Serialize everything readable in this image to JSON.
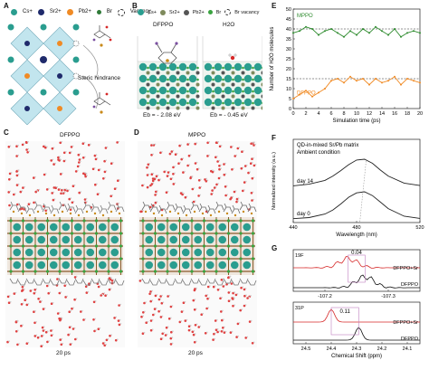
{
  "panels": {
    "A": {
      "letter": "A",
      "legend": [
        {
          "label": "Cs+",
          "color": "#2a9d8f"
        },
        {
          "label": "Sr2+",
          "color": "#1f2a6b"
        },
        {
          "label": "Pb2+",
          "color": "#f08a24"
        },
        {
          "label": "Br",
          "color": "#2f7a38"
        },
        {
          "label": "Vacancy",
          "color": "#ffffff"
        }
      ],
      "annotation": "Steric hindrance"
    },
    "B": {
      "letter": "B",
      "legend": [
        {
          "label": "Cs+",
          "color": "#2a9d8f"
        },
        {
          "label": "Sr2+",
          "color": "#7e8a5c"
        },
        {
          "label": "Pb2+",
          "color": "#555555"
        },
        {
          "label": "Br",
          "color": "#3aa340"
        },
        {
          "label": "Br vacancy",
          "color": "#ffffff"
        }
      ],
      "left_title": "DFPPO",
      "right_title": "H2O",
      "left_energy": "Eb = - 2.08 eV",
      "right_energy": "Eb = - 0.45 eV"
    },
    "C": {
      "letter": "C",
      "title": "DFPPO",
      "time": "20 ps"
    },
    "D": {
      "letter": "D",
      "title": "MPPO",
      "time": "20 ps"
    },
    "E": {
      "letter": "E"
    },
    "F": {
      "letter": "F"
    },
    "G": {
      "letter": "G"
    }
  },
  "chart_data": [
    {
      "panel": "E",
      "type": "line",
      "xlabel": "Simulation time (ps)",
      "ylabel": "Number of H2O molecules",
      "xlim": [
        0,
        20
      ],
      "ylim": [
        0,
        50
      ],
      "xticks": [
        0,
        2,
        4,
        6,
        8,
        10,
        12,
        14,
        16,
        18,
        20
      ],
      "yticks": [
        0,
        5,
        10,
        15,
        20,
        25,
        30,
        35,
        40,
        45,
        50
      ],
      "series": [
        {
          "name": "MPPO",
          "color": "#2e8b2e",
          "x": [
            0,
            1,
            2,
            3,
            4,
            5,
            6,
            7,
            8,
            9,
            10,
            11,
            12,
            13,
            14,
            15,
            16,
            17,
            18,
            19,
            20
          ],
          "values": [
            38,
            39,
            41,
            40,
            37,
            39,
            40,
            38,
            36,
            39,
            37,
            40,
            38,
            41,
            39,
            37,
            40,
            36,
            38,
            39,
            38
          ]
        },
        {
          "name": "DFPPO",
          "color": "#f08a24",
          "x": [
            0,
            1,
            2,
            3,
            4,
            5,
            6,
            7,
            8,
            9,
            10,
            11,
            12,
            13,
            14,
            15,
            16,
            17,
            18,
            19,
            20
          ],
          "values": [
            5,
            7,
            9,
            6,
            8,
            10,
            14,
            15,
            13,
            16,
            14,
            15,
            12,
            15,
            13,
            14,
            16,
            12,
            15,
            14,
            13
          ]
        }
      ],
      "annotations": [
        {
          "type": "dashed-hline",
          "y": 40
        },
        {
          "type": "dashed-hline",
          "y": 15
        }
      ]
    },
    {
      "panel": "F",
      "type": "line",
      "title": "QD-in-mixed Sr/Pb matrix",
      "subtitle": "Ambient condition",
      "xlabel": "Wavelength (nm)",
      "ylabel": "Normalized intensity (a.u.)",
      "xlim": [
        440,
        520
      ],
      "xticks": [
        440,
        480,
        520
      ],
      "series": [
        {
          "name": "day 14",
          "color": "#222222",
          "x": [
            440,
            450,
            460,
            465,
            470,
            475,
            480,
            485,
            490,
            495,
            500,
            510,
            520
          ],
          "values": [
            0.02,
            0.08,
            0.22,
            0.38,
            0.58,
            0.8,
            0.97,
            1.0,
            0.85,
            0.6,
            0.38,
            0.12,
            0.03
          ]
        },
        {
          "name": "day 0",
          "color": "#222222",
          "x": [
            440,
            450,
            460,
            465,
            470,
            475,
            480,
            485,
            490,
            495,
            500,
            510,
            520
          ],
          "values": [
            0.01,
            0.05,
            0.18,
            0.33,
            0.55,
            0.8,
            0.96,
            1.0,
            0.86,
            0.62,
            0.38,
            0.1,
            0.02
          ]
        }
      ]
    },
    {
      "panel": "G-top",
      "type": "line",
      "nucleus": "19F",
      "xticks": [
        -107.2,
        -107.3
      ],
      "xlim": [
        -107.15,
        -107.35
      ],
      "annotation": "0.04",
      "series": [
        {
          "name": "DFPPO+Sr",
          "color": "#d62828"
        },
        {
          "name": "DFPPO",
          "color": "#111111"
        }
      ]
    },
    {
      "panel": "G-bottom",
      "type": "line",
      "nucleus": "31P",
      "xlabel": "Chemical Shift (ppm)",
      "xticks": [
        24.5,
        24.4,
        24.3,
        24.2,
        24.1
      ],
      "xlim": [
        24.55,
        24.05
      ],
      "annotation": "0.11",
      "series": [
        {
          "name": "DFPPO+Sr",
          "color": "#d62828"
        },
        {
          "name": "DFPPO",
          "color": "#111111"
        }
      ]
    }
  ]
}
